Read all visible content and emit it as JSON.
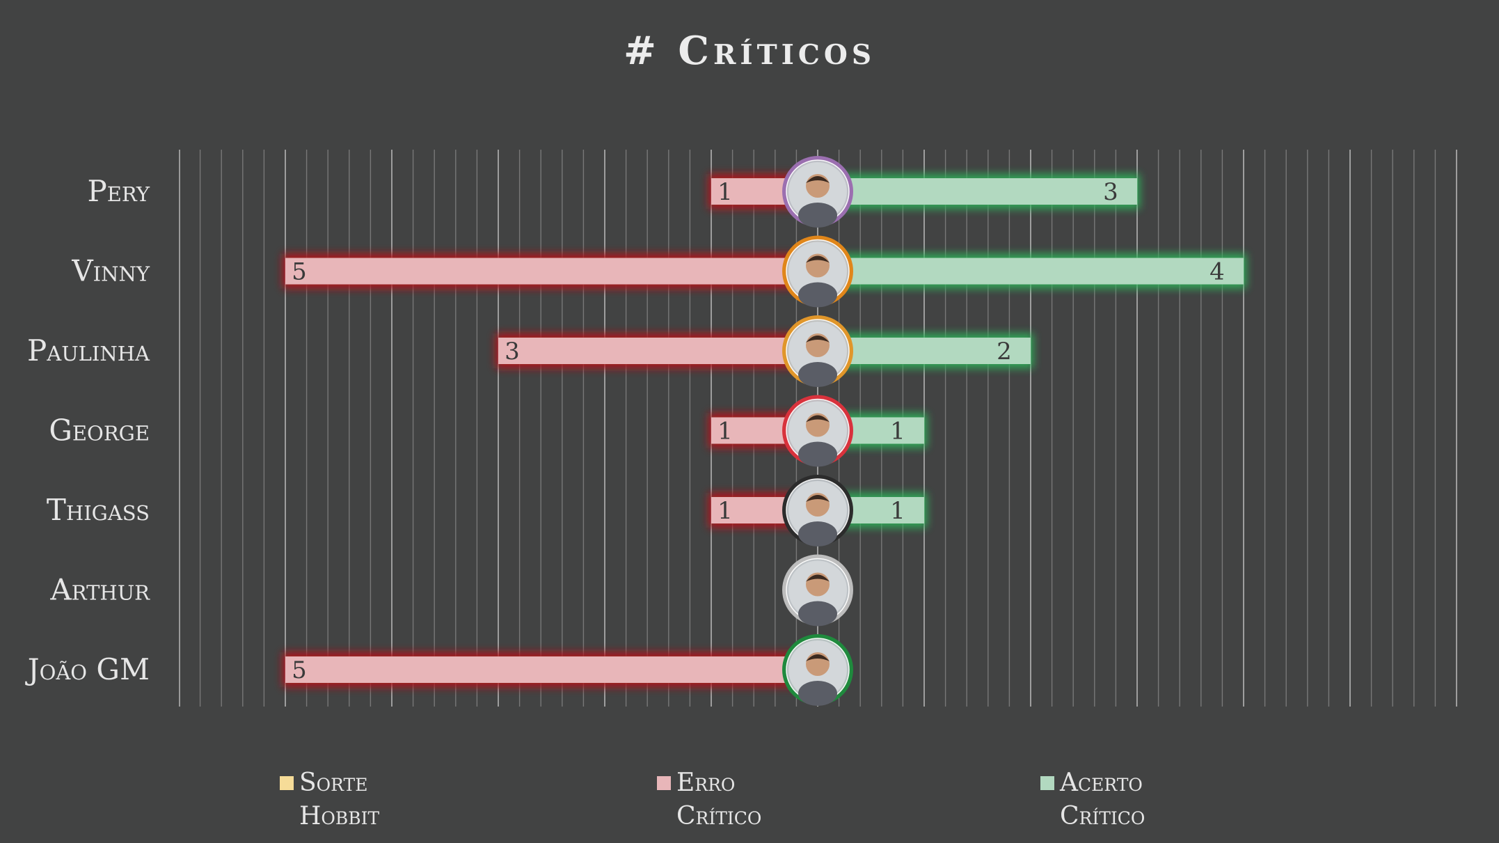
{
  "colors": {
    "background": "#424343",
    "sorte_hobbit": "#f6dc98",
    "erro_critico": "#e8b6b9",
    "erro_glow": "#b3191f",
    "acerto_critico": "#b2d9c0",
    "acerto_glow": "#2db25a",
    "text": "#e6e6e6",
    "value_text": "#3a3a3a",
    "grid": "#8a8a8a"
  },
  "chart_data": {
    "type": "bar",
    "orientation": "horizontal-diverging",
    "title": "# Críticos",
    "categories": [
      "Pery",
      "Vinny",
      "Paulinha",
      "George",
      "Thigass",
      "Arthur",
      "João GM"
    ],
    "series": [
      {
        "name": "Sorte Hobbit",
        "values": [
          0,
          0,
          0,
          0,
          0,
          0,
          0
        ],
        "direction": "left"
      },
      {
        "name": "Erro Crítico",
        "values": [
          1,
          5,
          3,
          1,
          1,
          0,
          5
        ],
        "direction": "left"
      },
      {
        "name": "Acerto Crítico",
        "values": [
          3,
          4,
          2,
          1,
          1,
          0,
          0
        ],
        "direction": "right"
      }
    ],
    "xlim": [
      -6,
      6
    ],
    "grid": true,
    "legend_position": "bottom",
    "avatar_ring_colors": [
      "#9b6fb0",
      "#e0861a",
      "#e0962a",
      "#d8323c",
      "#2c2c2c",
      "#bdbdbd",
      "#1f8a3d"
    ],
    "avatar_icons": [
      "avatar-pery-icon",
      "avatar-vinny-icon",
      "avatar-paulinha-icon",
      "avatar-george-icon",
      "avatar-thigass-icon",
      "avatar-arthur-icon",
      "avatar-joao-gm-icon"
    ]
  },
  "legend": {
    "items": [
      {
        "line1": "Sorte",
        "line2": "Hobbit",
        "color": "#f6dc98"
      },
      {
        "line1": "Erro",
        "line2": "Crítico",
        "color": "#e8b6b9"
      },
      {
        "line1": "Acerto",
        "line2": "Crítico",
        "color": "#b2d9c0"
      }
    ]
  }
}
